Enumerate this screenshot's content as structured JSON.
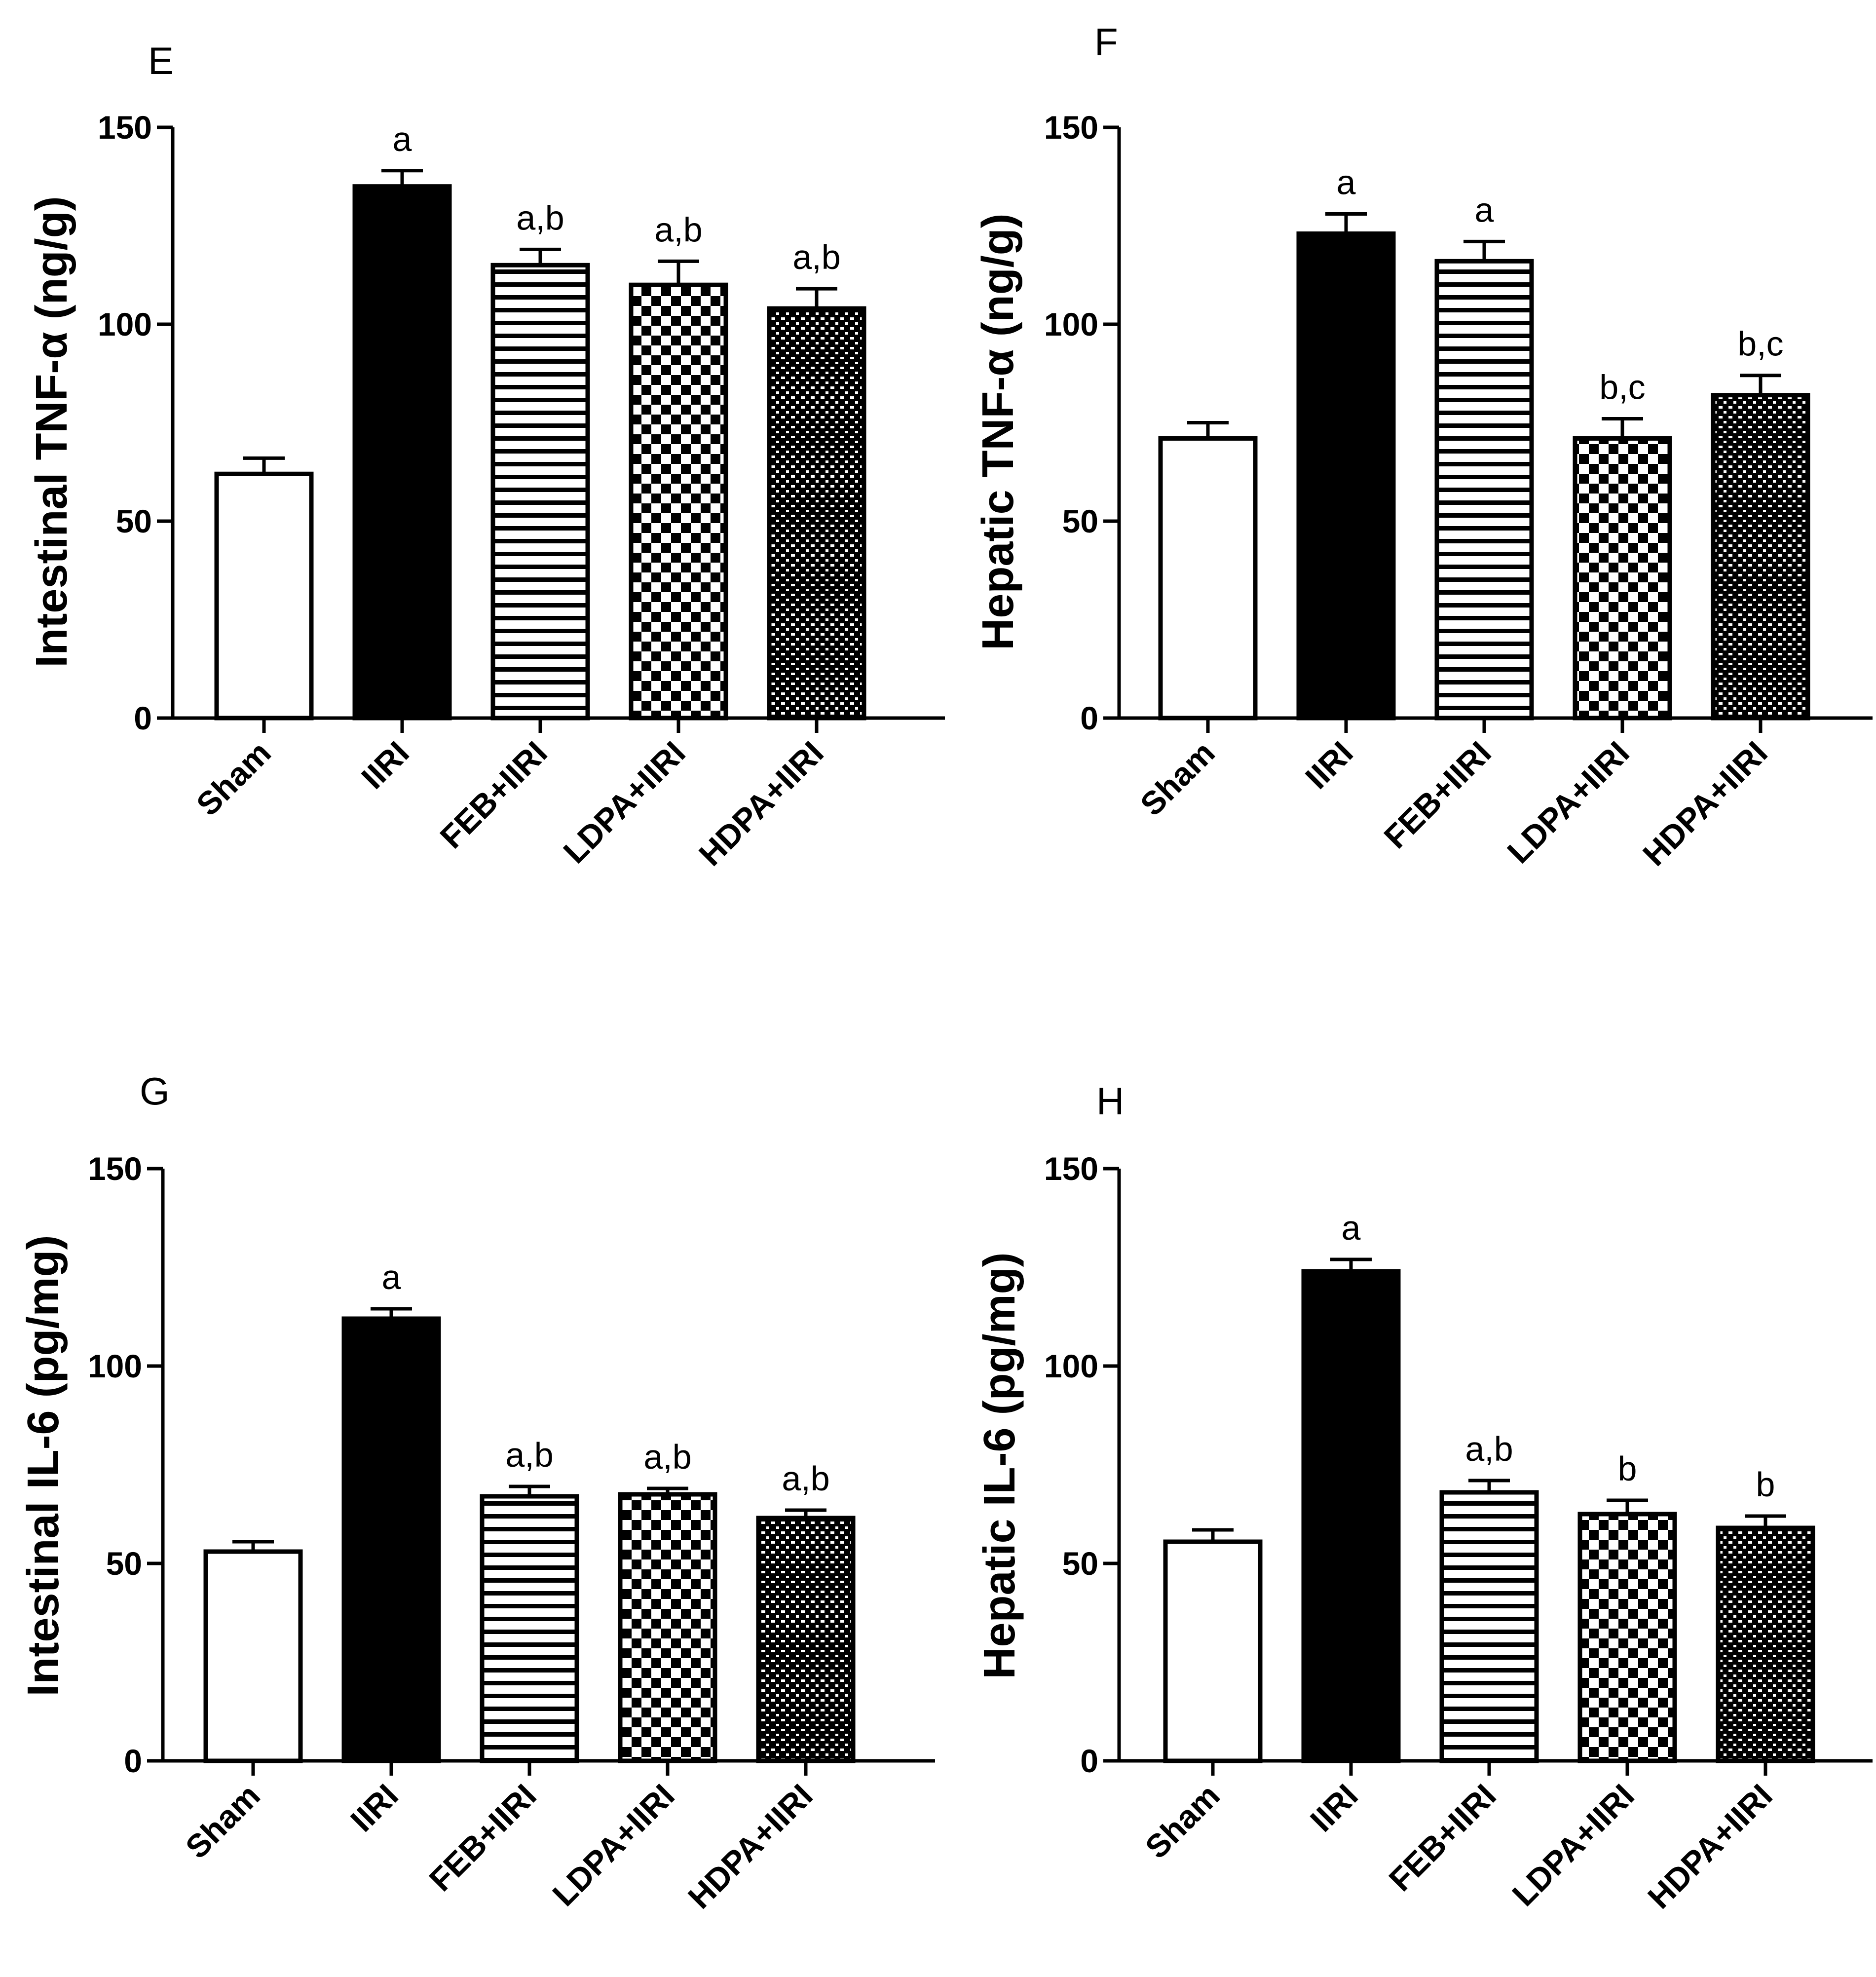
{
  "colors": {
    "ink": "#000000",
    "background": "#ffffff"
  },
  "chart_data": [
    {
      "panel": "E",
      "type": "bar",
      "ylabel": "Intestinal TNF-α (ng/g)",
      "ylim": [
        0,
        150
      ],
      "yticks": [
        "0",
        "50",
        "100",
        "150"
      ],
      "categories": [
        "Sham",
        "IIRI",
        "FEB+IIRI",
        "LDPA+IIRI",
        "HDPA+IIRI"
      ],
      "values": [
        62,
        135,
        115,
        110,
        104
      ],
      "errors": [
        4,
        4,
        4,
        6,
        5
      ],
      "patterns": [
        "white",
        "solid",
        "hlines",
        "checker",
        "fine-checker"
      ],
      "significance": [
        "",
        "a",
        "a,b",
        "a,b",
        "a,b"
      ]
    },
    {
      "panel": "F",
      "type": "bar",
      "ylabel": "Hepatic TNF-α (ng/g)",
      "ylim": [
        0,
        150
      ],
      "yticks": [
        "0",
        "50",
        "100",
        "150"
      ],
      "categories": [
        "Sham",
        "IIRI",
        "FEB+IIRI",
        "LDPA+IIRI",
        "HDPA+IIRI"
      ],
      "values": [
        71,
        123,
        116,
        71,
        82
      ],
      "errors": [
        4,
        5,
        5,
        5,
        5
      ],
      "patterns": [
        "white",
        "solid",
        "hlines",
        "checker",
        "fine-checker"
      ],
      "significance": [
        "",
        "a",
        "a",
        "b,c",
        "b,c"
      ]
    },
    {
      "panel": "G",
      "type": "bar",
      "ylabel": "Intestinal IL-6 (pg/mg)",
      "ylim": [
        0,
        150
      ],
      "yticks": [
        "0",
        "50",
        "100",
        "150"
      ],
      "categories": [
        "Sham",
        "IIRI",
        "FEB+IIRI",
        "LDPA+IIRI",
        "HDPA+IIRI"
      ],
      "values": [
        53,
        112,
        67,
        67.5,
        61.5
      ],
      "errors": [
        2.5,
        2.5,
        2.5,
        1.5,
        2
      ],
      "patterns": [
        "white",
        "solid",
        "hlines",
        "checker",
        "fine-checker"
      ],
      "significance": [
        "",
        "a",
        "a,b",
        "a,b",
        "a,b"
      ]
    },
    {
      "panel": "H",
      "type": "bar",
      "ylabel": "Hepatic IL-6 (pg/mg)",
      "ylim": [
        0,
        150
      ],
      "yticks": [
        "0",
        "50",
        "100",
        "150"
      ],
      "categories": [
        "Sham",
        "IIRI",
        "FEB+IIRI",
        "LDPA+IIRI",
        "HDPA+IIRI"
      ],
      "values": [
        55.5,
        124,
        68,
        62.5,
        59
      ],
      "errors": [
        3,
        3,
        3,
        3.5,
        3
      ],
      "patterns": [
        "white",
        "solid",
        "hlines",
        "checker",
        "fine-checker"
      ],
      "significance": [
        "",
        "a",
        "a,b",
        "b",
        "b"
      ]
    }
  ]
}
